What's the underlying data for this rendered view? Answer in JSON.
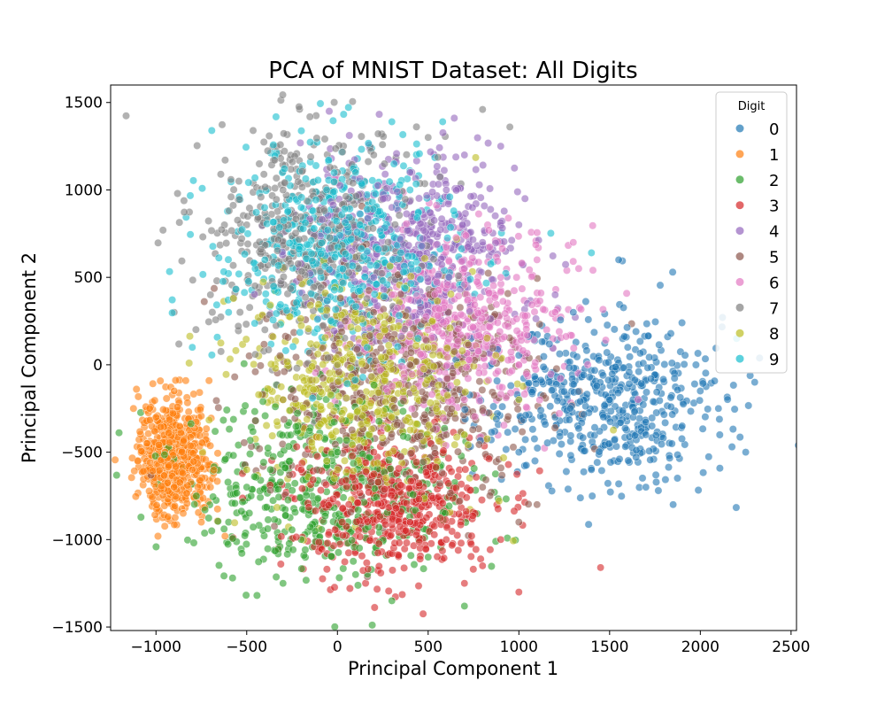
{
  "chart_data": {
    "type": "scatter",
    "title": "PCA of MNIST Dataset: All Digits",
    "xlabel": "Principal Component 1",
    "ylabel": "Principal Component 2",
    "xlim": [
      -1250,
      2530
    ],
    "ylim": [
      -1520,
      1600
    ],
    "xticks": [
      -1000,
      -500,
      0,
      500,
      1000,
      1500,
      2000,
      2500
    ],
    "yticks": [
      -1500,
      -1000,
      -500,
      0,
      500,
      1000,
      1500
    ],
    "xtick_labels": [
      "−1000",
      "−500",
      "0",
      "500",
      "1000",
      "1500",
      "2000",
      "2500"
    ],
    "ytick_labels": [
      "−1500",
      "−1000",
      "−500",
      "0",
      "500",
      "1000",
      "1500"
    ],
    "grid": false,
    "marker_alpha": 0.6,
    "legend": {
      "title": "Digit",
      "position": "upper-right"
    },
    "series": [
      {
        "name": "0",
        "color": "#1f77b4",
        "center": [
          1450,
          -230
        ],
        "spread": [
          330,
          230
        ],
        "points": [
          [
            1200,
            -300
          ],
          [
            1500,
            -200
          ],
          [
            1700,
            -400
          ],
          [
            1900,
            -350
          ],
          [
            2100,
            -250
          ],
          [
            2300,
            -100
          ],
          [
            1300,
            300
          ],
          [
            1600,
            100
          ],
          [
            1400,
            -600
          ],
          [
            1700,
            -700
          ],
          [
            1000,
            -500
          ],
          [
            2250,
            -500
          ],
          [
            1850,
            -800
          ],
          [
            1550,
            600
          ],
          [
            2000,
            -150
          ]
        ]
      },
      {
        "name": "1",
        "color": "#ff7f0e",
        "center": [
          -900,
          -520
        ],
        "spread": [
          100,
          180
        ],
        "points": [
          [
            -1000,
            -300
          ],
          [
            -950,
            -500
          ],
          [
            -900,
            -700
          ],
          [
            -850,
            -850
          ],
          [
            -800,
            -600
          ],
          [
            -1050,
            -450
          ],
          [
            -750,
            -900
          ],
          [
            -700,
            -700
          ],
          [
            -620,
            -980
          ],
          [
            -900,
            -150
          ]
        ]
      },
      {
        "name": "2",
        "color": "#2ca02c",
        "center": [
          -50,
          -700
        ],
        "spread": [
          380,
          260
        ],
        "points": [
          [
            -200,
            -1000
          ],
          [
            100,
            -1200
          ],
          [
            300,
            -1350
          ],
          [
            700,
            -1380
          ],
          [
            -500,
            -700
          ],
          [
            0,
            -500
          ],
          [
            -300,
            -1250
          ],
          [
            500,
            -1100
          ],
          [
            -600,
            -900
          ],
          [
            150,
            -300
          ]
        ]
      },
      {
        "name": "3",
        "color": "#d62728",
        "center": [
          300,
          -800
        ],
        "spread": [
          280,
          200
        ],
        "points": [
          [
            100,
            -700
          ],
          [
            400,
            -900
          ],
          [
            600,
            -1000
          ],
          [
            800,
            -1150
          ],
          [
            1000,
            -1300
          ],
          [
            900,
            -1000
          ],
          [
            200,
            -500
          ],
          [
            -200,
            -600
          ],
          [
            700,
            -1250
          ],
          [
            1450,
            -1160
          ]
        ]
      },
      {
        "name": "4",
        "color": "#9467bd",
        "center": [
          400,
          650
        ],
        "spread": [
          300,
          280
        ],
        "points": [
          [
            300,
            900
          ],
          [
            600,
            1000
          ],
          [
            700,
            1200
          ],
          [
            900,
            1250
          ],
          [
            800,
            700
          ],
          [
            200,
            500
          ],
          [
            500,
            300
          ],
          [
            1000,
            800
          ],
          [
            400,
            1100
          ],
          [
            1200,
            400
          ]
        ]
      },
      {
        "name": "5",
        "color": "#8c564b",
        "center": [
          300,
          -150
        ],
        "spread": [
          400,
          320
        ],
        "points": [
          [
            0,
            -100
          ],
          [
            400,
            0
          ],
          [
            600,
            -400
          ],
          [
            800,
            -700
          ],
          [
            200,
            300
          ],
          [
            -300,
            -200
          ],
          [
            1000,
            -900
          ],
          [
            1100,
            -800
          ]
        ]
      },
      {
        "name": "6",
        "color": "#e377c2",
        "center": [
          700,
          250
        ],
        "spread": [
          300,
          260
        ],
        "points": [
          [
            500,
            200
          ],
          [
            900,
            500
          ],
          [
            1100,
            600
          ],
          [
            1300,
            700
          ],
          [
            700,
            -200
          ],
          [
            300,
            400
          ],
          [
            1200,
            300
          ],
          [
            1000,
            0
          ]
        ]
      },
      {
        "name": "7",
        "color": "#7f7f7f",
        "center": [
          -150,
          750
        ],
        "spread": [
          300,
          320
        ],
        "points": [
          [
            -500,
            800
          ],
          [
            -300,
            1000
          ],
          [
            0,
            1100
          ],
          [
            200,
            1200
          ],
          [
            500,
            1300
          ],
          [
            800,
            1460
          ],
          [
            -700,
            400
          ],
          [
            -900,
            300
          ],
          [
            -400,
            200
          ],
          [
            950,
            1360
          ]
        ]
      },
      {
        "name": "8",
        "color": "#bcbd22",
        "center": [
          150,
          -100
        ],
        "spread": [
          320,
          300
        ],
        "points": [
          [
            0,
            0
          ],
          [
            300,
            -300
          ],
          [
            -300,
            -200
          ],
          [
            500,
            100
          ],
          [
            100,
            300
          ],
          [
            -500,
            -600
          ],
          [
            700,
            -400
          ],
          [
            1000,
            -200
          ]
        ]
      },
      {
        "name": "9",
        "color": "#17becf",
        "center": [
          0,
          650
        ],
        "spread": [
          330,
          300
        ],
        "points": [
          [
            -400,
            600
          ],
          [
            -200,
            900
          ],
          [
            100,
            1100
          ],
          [
            300,
            1390
          ],
          [
            580,
            1390
          ],
          [
            -800,
            100
          ],
          [
            -600,
            300
          ],
          [
            400,
            1000
          ],
          [
            1400,
            640
          ],
          [
            2200,
            150
          ]
        ]
      }
    ]
  }
}
